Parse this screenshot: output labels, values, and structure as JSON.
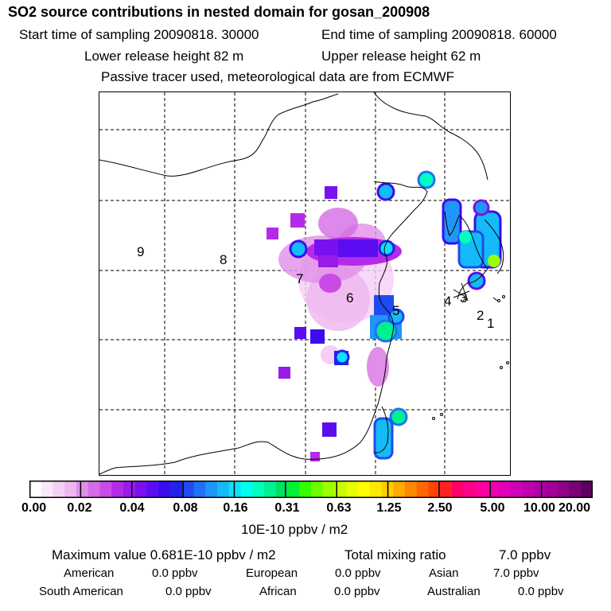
{
  "header": {
    "title": "SO2 source contributions in nested domain for gosan_200908",
    "start_label": "Start time of sampling 20090818. 30000",
    "end_label": "End time of sampling 20090818. 60000",
    "lower_label": "Lower release height   82 m",
    "upper_label": "Upper release height   62 m",
    "note": "Passive tracer used, meteorological data are from ECMWF"
  },
  "map": {
    "track_labels": [
      "1",
      "2",
      "3",
      "4",
      "5",
      "6",
      "7",
      "8",
      "9"
    ],
    "coastline_color": "#000000",
    "grid_style": "dashed"
  },
  "colorbar": {
    "unit": "10E-10 ppbv / m2",
    "tick_labels": [
      "0.00",
      "0.02",
      "0.04",
      "0.08",
      "0.16",
      "0.31",
      "0.63",
      "1.25",
      "2.50",
      "5.00",
      "10.00",
      "20.00"
    ],
    "colors": [
      "#ffffff",
      "#fbe8fb",
      "#f5cff5",
      "#efb5ef",
      "#e08ee8",
      "#d56be6",
      "#c94be6",
      "#b52ae8",
      "#9a1ae8",
      "#7a10ee",
      "#5b0cf0",
      "#3b0cf0",
      "#2222e8",
      "#1f4bf0",
      "#1f72f5",
      "#1f96f8",
      "#14bbf8",
      "#0ee0f8",
      "#00ffee",
      "#00ffc0",
      "#00f090",
      "#00e060",
      "#00f033",
      "#33ff00",
      "#6cff00",
      "#9cff00",
      "#c8ff00",
      "#e8ff00",
      "#ffff00",
      "#ffe800",
      "#ffcc00",
      "#ffaa00",
      "#ff8800",
      "#ff6600",
      "#ff4400",
      "#ff2222",
      "#ff0066",
      "#ff0088",
      "#ff00a0",
      "#f000b0",
      "#e000b8",
      "#d000b8",
      "#c000b0",
      "#b000a8",
      "#a00098",
      "#900088",
      "#7a0078",
      "#5c005c"
    ]
  },
  "stats": {
    "max_label": "Maximum value  0.681E-10 ppbv / m2",
    "total_label": "Total mixing ratio",
    "total_value": "7.0 ppbv",
    "american_label": "American",
    "american_value": "0.0 ppbv",
    "european_label": "European",
    "european_value": "0.0 ppbv",
    "asian_label": "Asian",
    "asian_value": "7.0 ppbv",
    "south_american_label": "South American",
    "south_american_value": "0.0 ppbv",
    "african_label": "African",
    "african_value": "0.0 ppbv",
    "australian_label": "Australian",
    "australian_value": "0.0 ppbv"
  }
}
